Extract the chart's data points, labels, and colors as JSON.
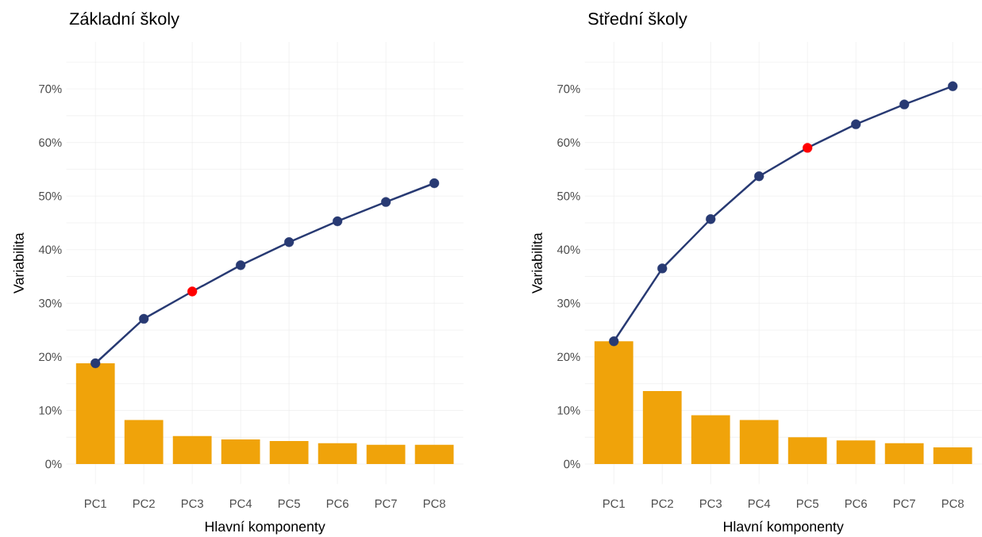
{
  "chart_data": [
    {
      "type": "bar",
      "title": "Základní školy",
      "xlabel": "Hlavní komponenty",
      "ylabel": "Variabilita",
      "grid": true,
      "legend": false,
      "categories": [
        "PC1",
        "PC2",
        "PC3",
        "PC4",
        "PC5",
        "PC6",
        "PC7",
        "PC8"
      ],
      "ylim": [
        -3.75,
        78.75
      ],
      "yticks": [
        {
          "value": 0,
          "label": "0%"
        },
        {
          "value": 5,
          "label": null
        },
        {
          "value": 10,
          "label": "10%"
        },
        {
          "value": 15,
          "label": null
        },
        {
          "value": 20,
          "label": "20%"
        },
        {
          "value": 25,
          "label": null
        },
        {
          "value": 30,
          "label": "30%"
        },
        {
          "value": 35,
          "label": null
        },
        {
          "value": 40,
          "label": "40%"
        },
        {
          "value": 45,
          "label": null
        },
        {
          "value": 50,
          "label": "50%"
        },
        {
          "value": 55,
          "label": null
        },
        {
          "value": 60,
          "label": "60%"
        },
        {
          "value": 65,
          "label": null
        },
        {
          "value": 70,
          "label": "70%"
        },
        {
          "value": 75,
          "label": null
        }
      ],
      "series": [
        {
          "color": "#f0a30a",
          "values": [
            18.8,
            8.2,
            5.2,
            4.6,
            4.3,
            3.9,
            3.6,
            3.6
          ]
        },
        {
          "type": "line",
          "color": "#283a73",
          "marker": "circle",
          "colors": [
            "#283a73",
            "#283a73",
            "#ff0000",
            "#283a73",
            "#283a73",
            "#283a73",
            "#283a73",
            "#283a73"
          ],
          "values": [
            18.8,
            27.1,
            32.2,
            37.1,
            41.4,
            45.3,
            48.9,
            52.4
          ]
        }
      ]
    },
    {
      "type": "bar",
      "title": "Střední školy",
      "xlabel": "Hlavní komponenty",
      "ylabel": "Variabilita",
      "grid": true,
      "legend": false,
      "categories": [
        "PC1",
        "PC2",
        "PC3",
        "PC4",
        "PC5",
        "PC6",
        "PC7",
        "PC8"
      ],
      "ylim": [
        -3.75,
        78.75
      ],
      "yticks": [
        {
          "value": 0,
          "label": "0%"
        },
        {
          "value": 5,
          "label": null
        },
        {
          "value": 10,
          "label": "10%"
        },
        {
          "value": 15,
          "label": null
        },
        {
          "value": 20,
          "label": "20%"
        },
        {
          "value": 25,
          "label": null
        },
        {
          "value": 30,
          "label": "30%"
        },
        {
          "value": 35,
          "label": null
        },
        {
          "value": 40,
          "label": "40%"
        },
        {
          "value": 45,
          "label": null
        },
        {
          "value": 50,
          "label": "50%"
        },
        {
          "value": 55,
          "label": null
        },
        {
          "value": 60,
          "label": "60%"
        },
        {
          "value": 65,
          "label": null
        },
        {
          "value": 70,
          "label": "70%"
        },
        {
          "value": 75,
          "label": null
        }
      ],
      "series": [
        {
          "color": "#f0a30a",
          "values": [
            22.9,
            13.6,
            9.1,
            8.2,
            5.0,
            4.4,
            3.9,
            3.1
          ]
        },
        {
          "type": "line",
          "color": "#283a73",
          "marker": "circle",
          "colors": [
            "#283a73",
            "#283a73",
            "#283a73",
            "#283a73",
            "#ff0000",
            "#283a73",
            "#283a73",
            "#283a73"
          ],
          "values": [
            22.9,
            36.5,
            45.7,
            53.7,
            59.0,
            63.4,
            67.1,
            70.5
          ]
        }
      ]
    }
  ]
}
